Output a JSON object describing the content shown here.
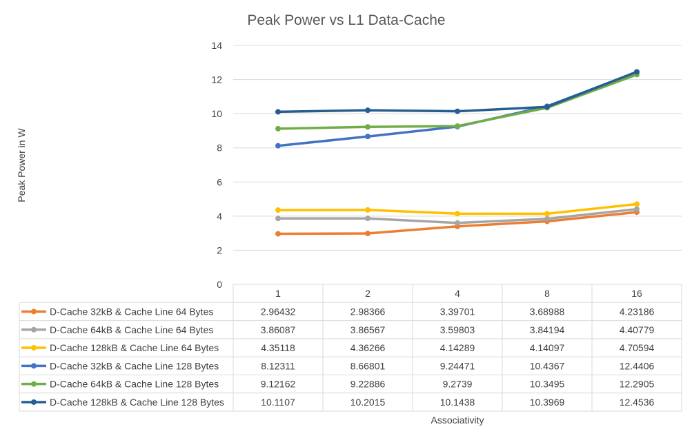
{
  "chart_data": {
    "type": "line",
    "title": "Peak Power vs L1 Data-Cache",
    "xlabel": "Associativity",
    "ylabel": "Peak Power in W",
    "categories": [
      "1",
      "2",
      "4",
      "8",
      "16"
    ],
    "ylim": [
      0,
      14
    ],
    "yticks": [
      "0",
      "2",
      "4",
      "6",
      "8",
      "10",
      "12",
      "14"
    ],
    "grid": true,
    "legend": "data-table",
    "series": [
      {
        "name": "D-Cache 32kB & Cache Line 64 Bytes",
        "color": "#ed7d31",
        "values": [
          2.96432,
          2.98366,
          3.39701,
          3.68988,
          4.23186
        ],
        "labels": [
          "2.96432",
          "2.98366",
          "3.39701",
          "3.68988",
          "4.23186"
        ]
      },
      {
        "name": "D-Cache 64kB & Cache Line 64 Bytes",
        "color": "#a5a5a5",
        "values": [
          3.86087,
          3.86567,
          3.59803,
          3.84194,
          4.40779
        ],
        "labels": [
          "3.86087",
          "3.86567",
          "3.59803",
          "3.84194",
          "4.40779"
        ]
      },
      {
        "name": "D-Cache 128kB & Cache Line 64 Bytes",
        "color": "#ffc000",
        "values": [
          4.35118,
          4.36266,
          4.14289,
          4.14097,
          4.70594
        ],
        "labels": [
          "4.35118",
          "4.36266",
          "4.14289",
          "4.14097",
          "4.70594"
        ]
      },
      {
        "name": "D-Cache 32kB & Cache Line 128 Bytes",
        "color": "#4472c4",
        "values": [
          8.12311,
          8.66801,
          9.24471,
          10.4367,
          12.4406
        ],
        "labels": [
          "8.12311",
          "8.66801",
          "9.24471",
          "10.4367",
          "12.4406"
        ]
      },
      {
        "name": "D-Cache 64kB & Cache Line 128 Bytes",
        "color": "#70ad47",
        "values": [
          9.12162,
          9.22886,
          9.2739,
          10.3495,
          12.2905
        ],
        "labels": [
          "9.12162",
          "9.22886",
          "9.2739",
          "10.3495",
          "12.2905"
        ]
      },
      {
        "name": "D-Cache 128kB & Cache Line 128 Bytes",
        "color": "#255e91",
        "values": [
          10.1107,
          10.2015,
          10.1438,
          10.3969,
          12.4536
        ],
        "labels": [
          "10.1107",
          "10.2015",
          "10.1438",
          "10.3969",
          "12.4536"
        ]
      }
    ]
  }
}
